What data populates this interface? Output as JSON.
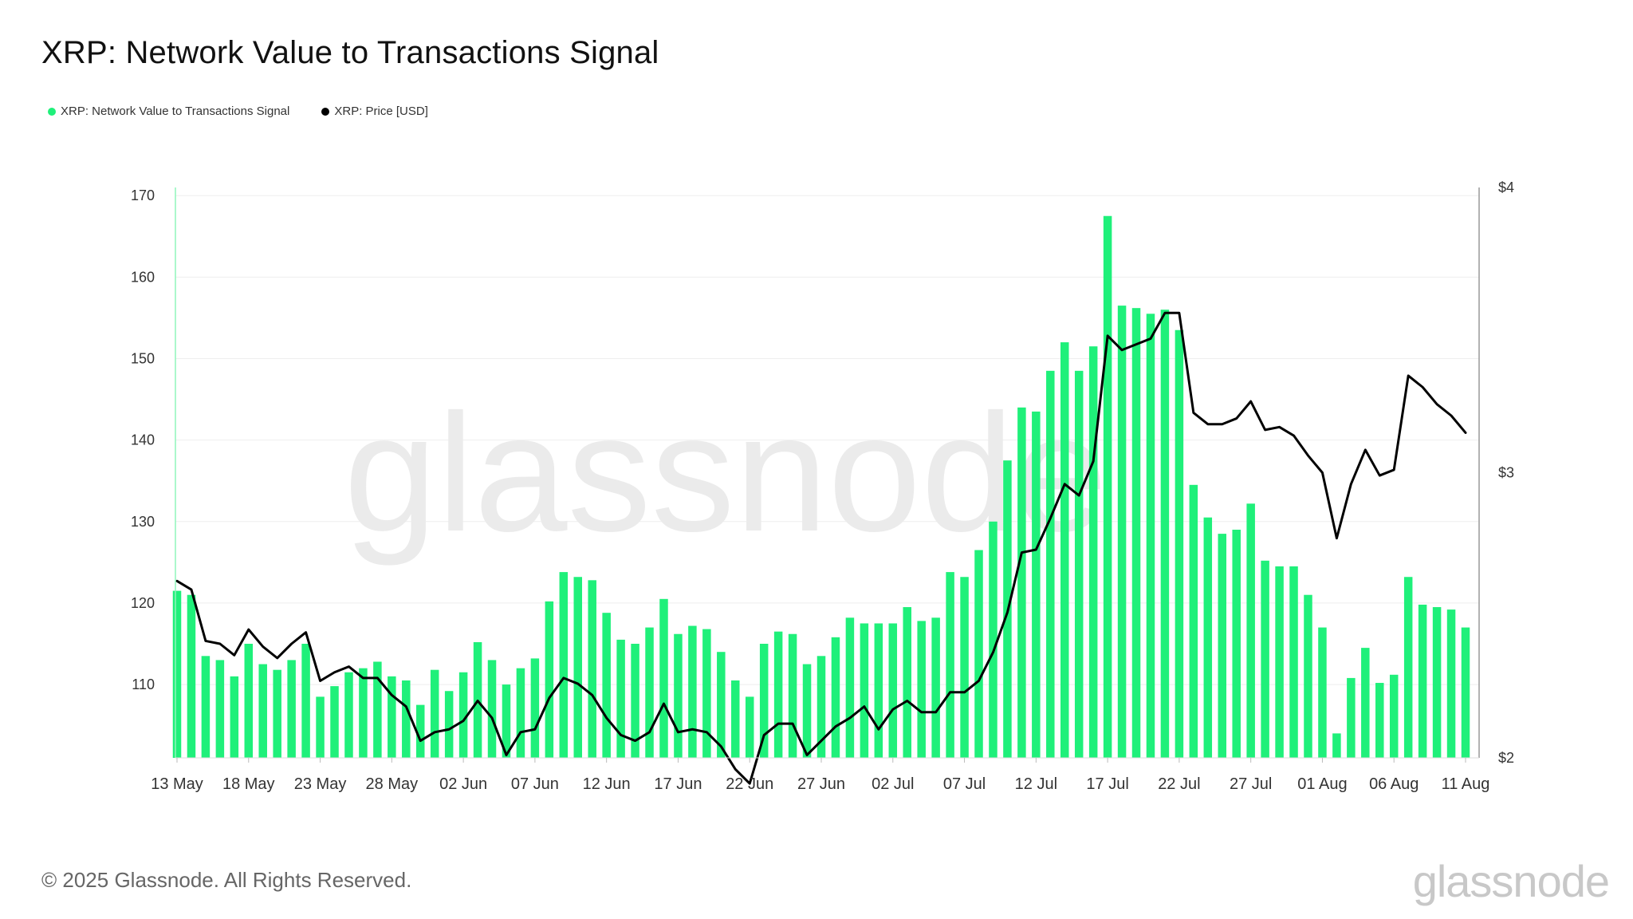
{
  "title": "XRP: Network Value to Transactions Signal",
  "legend": [
    {
      "label": "XRP: Network Value to Transactions Signal",
      "color": "#1ff07a"
    },
    {
      "label": "XRP: Price [USD]",
      "color": "#000000"
    }
  ],
  "watermark": "glassnode",
  "footer": {
    "copyright": "© 2025 Glassnode. All Rights Reserved.",
    "logo": "glassnode"
  },
  "chart_data": {
    "type": "bar+line",
    "title": "XRP: Network Value to Transactions Signal",
    "bar_color": "#1ff07a",
    "line_color": "#000000",
    "left_axis": {
      "min": 101,
      "max": 171,
      "ticks": [
        110,
        120,
        130,
        140,
        150,
        160,
        170
      ]
    },
    "right_axis": {
      "min": 2,
      "max": 4,
      "ticks": [
        {
          "value": 2,
          "label": "$2"
        },
        {
          "value": 3,
          "label": "$3"
        },
        {
          "value": 4,
          "label": "$4"
        }
      ]
    },
    "x_tick_labels": [
      {
        "index": 0,
        "label": "13 May"
      },
      {
        "index": 5,
        "label": "18 May"
      },
      {
        "index": 10,
        "label": "23 May"
      },
      {
        "index": 15,
        "label": "28 May"
      },
      {
        "index": 20,
        "label": "02 Jun"
      },
      {
        "index": 25,
        "label": "07 Jun"
      },
      {
        "index": 30,
        "label": "12 Jun"
      },
      {
        "index": 35,
        "label": "17 Jun"
      },
      {
        "index": 40,
        "label": "22 Jun"
      },
      {
        "index": 45,
        "label": "27 Jun"
      },
      {
        "index": 50,
        "label": "02 Jul"
      },
      {
        "index": 55,
        "label": "07 Jul"
      },
      {
        "index": 60,
        "label": "12 Jul"
      },
      {
        "index": 65,
        "label": "17 Jul"
      },
      {
        "index": 70,
        "label": "22 Jul"
      },
      {
        "index": 75,
        "label": "27 Jul"
      },
      {
        "index": 80,
        "label": "01 Aug"
      },
      {
        "index": 85,
        "label": "06 Aug"
      },
      {
        "index": 90,
        "label": "11 Aug"
      }
    ],
    "series": [
      {
        "name": "XRP: Network Value to Transactions Signal",
        "axis": "left",
        "values": [
          121.5,
          121.0,
          113.5,
          113.0,
          111.0,
          115.0,
          112.5,
          111.8,
          113.0,
          115.0,
          108.5,
          109.8,
          111.5,
          112.0,
          112.8,
          111.0,
          110.5,
          107.5,
          111.8,
          109.2,
          111.5,
          115.2,
          113.0,
          110.0,
          112.0,
          113.2,
          120.2,
          123.8,
          123.2,
          122.8,
          118.8,
          115.5,
          115.0,
          117.0,
          120.5,
          116.2,
          117.2,
          116.8,
          114.0,
          110.5,
          108.5,
          115.0,
          116.5,
          116.2,
          112.5,
          113.5,
          115.8,
          118.2,
          117.5,
          117.5,
          117.5,
          119.5,
          117.8,
          118.2,
          123.8,
          123.2,
          126.5,
          130.0,
          137.5,
          144.0,
          143.5,
          148.5,
          152.0,
          148.5,
          151.5,
          167.5,
          156.5,
          156.2,
          155.5,
          156.0,
          153.5,
          134.5,
          130.5,
          128.5,
          129.0,
          132.2,
          125.2,
          124.5,
          124.5,
          121.0,
          117.0,
          104.0,
          110.8,
          114.5,
          110.2,
          111.2,
          123.2,
          119.8,
          119.5,
          119.2,
          117.0
        ]
      },
      {
        "name": "XRP: Price [USD]",
        "axis": "right",
        "values": [
          2.62,
          2.59,
          2.41,
          2.4,
          2.36,
          2.45,
          2.39,
          2.35,
          2.4,
          2.44,
          2.27,
          2.3,
          2.32,
          2.28,
          2.28,
          2.22,
          2.18,
          2.06,
          2.09,
          2.1,
          2.13,
          2.2,
          2.14,
          2.01,
          2.09,
          2.1,
          2.21,
          2.28,
          2.26,
          2.22,
          2.14,
          2.08,
          2.06,
          2.09,
          2.19,
          2.09,
          2.1,
          2.09,
          2.04,
          1.96,
          1.91,
          2.08,
          2.12,
          2.12,
          2.01,
          2.06,
          2.11,
          2.14,
          2.18,
          2.1,
          2.17,
          2.2,
          2.16,
          2.16,
          2.23,
          2.23,
          2.27,
          2.37,
          2.51,
          2.72,
          2.73,
          2.84,
          2.96,
          2.92,
          3.04,
          3.48,
          3.43,
          3.45,
          3.47,
          3.56,
          3.56,
          3.21,
          3.17,
          3.17,
          3.19,
          3.25,
          3.15,
          3.16,
          3.13,
          3.06,
          3.0,
          2.77,
          2.96,
          3.08,
          2.99,
          3.01,
          3.34,
          3.3,
          3.24,
          3.2,
          3.14
        ]
      }
    ]
  }
}
